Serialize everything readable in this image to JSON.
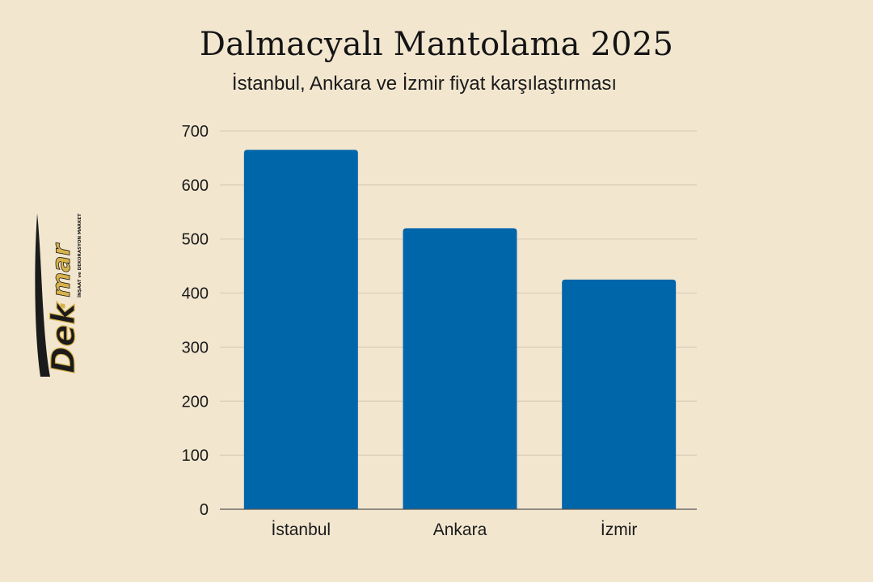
{
  "chart_data": {
    "type": "bar",
    "title": "Dalmacyalı Mantolama 2025",
    "subtitle": "İstanbul, Ankara ve İzmir fiyat karşılaştırması",
    "categories": [
      "İstanbul",
      "Ankara",
      "İzmir"
    ],
    "values": [
      665,
      520,
      425
    ],
    "ylim": [
      0,
      700
    ],
    "yticks": [
      0,
      100,
      200,
      300,
      400,
      500,
      600,
      700
    ],
    "grid": true,
    "bar_color": "#0066aa",
    "grid_color": "#d4c8b2",
    "axis_color": "#555555"
  },
  "logo": {
    "brand": "Dek",
    "brand_dot": "·",
    "brand_suffix": "mar",
    "tagline": "İNŞAAT ve DEKORASYON MARKET",
    "dark_color": "#1b1b1b",
    "gold_color": "#d8b24a"
  }
}
